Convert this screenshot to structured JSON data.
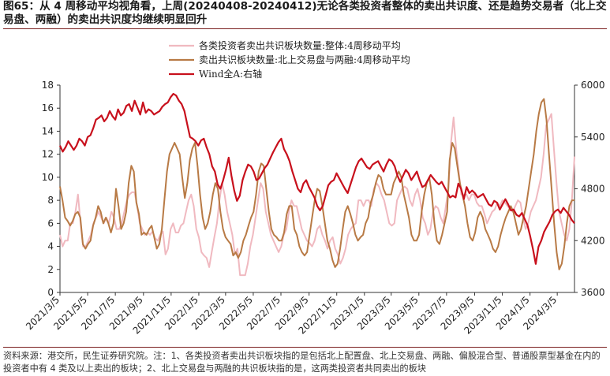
{
  "title": "图65：从 4 周移动平均视角看，上周(20240408-20240412)无论各类投资者整体的卖出共识度、还是趋势交易者（北上交易盘、两融）的卖出共识度均继续明显回升",
  "note": "资料来源：港交所，民生证券研究院。注：1、各类投资者卖出共识板块指的是包括北上配置盘、北上交易盘、两融、偏股混合型、普通股票型基金在内的投资者中有 4 类及以上卖出的板块；2、北上交易盘与两融的共识板块指的是，这两类投资者共同卖出的板块",
  "chart_data": {
    "type": "line",
    "x_ticks": [
      "2021/3/5",
      "2021/5/5",
      "2021/7/5",
      "2021/9/5",
      "2021/11/5",
      "2022/1/5",
      "2022/3/5",
      "2022/5/5",
      "2022/7/5",
      "2022/9/5",
      "2022/11/5",
      "2023/1/5",
      "2023/3/5",
      "2023/5/5",
      "2023/7/5",
      "2023/9/5",
      "2023/11/5",
      "2024/1/5",
      "2024/3/5"
    ],
    "x_range": [
      "2021/3/5",
      "2024/4/12"
    ],
    "y_left": {
      "min": 0,
      "max": 18,
      "ticks": [
        0,
        2,
        4,
        6,
        8,
        10,
        12,
        14,
        16,
        18
      ]
    },
    "y_right": {
      "min": 3600,
      "max": 6000,
      "ticks": [
        3600,
        4200,
        4800,
        5400,
        6000
      ]
    },
    "grid": false,
    "legend_position": "top-left",
    "series": [
      {
        "name": "各类投资者卖出共识板块数量:整体:4周移动平均",
        "color": "#f0b9c0",
        "axis": "left",
        "values": [
          5.0,
          4.0,
          4.5,
          4.5,
          6.0,
          6.0,
          7.0,
          8.5,
          6.0,
          4.0,
          4.0,
          4.5,
          5.0,
          6.0,
          6.5,
          7.0,
          6.5,
          6.0,
          6.5,
          6.0,
          7.0,
          6.5,
          5.5,
          5.5,
          6.0,
          7.0,
          8.0,
          8.5,
          8.7,
          8.7,
          7.5,
          6.0,
          5.5,
          5.0,
          5.2,
          5.0,
          5.3,
          4.7,
          4.5,
          5.0,
          5.3,
          3.3,
          3.8,
          5.5,
          6.0,
          5.2,
          5.2,
          5.8,
          6.0,
          7.0,
          8.0,
          8.5,
          7.5,
          5.5,
          4.8,
          3.5,
          3.2,
          3.0,
          2.2,
          3.5,
          4.8,
          6.0,
          8.0,
          9.5,
          8.5,
          7.0,
          6.0,
          5.0,
          3.3,
          3.8,
          1.5,
          1.5,
          1.5,
          2.5,
          4.0,
          5.0,
          6.5,
          8.0,
          9.5,
          9.0,
          7.0,
          6.0,
          5.0,
          4.5,
          4.0,
          3.5,
          4.0,
          5.0,
          5.5,
          7.0,
          8.0,
          7.5,
          7.5,
          6.5,
          5.5,
          5.0,
          4.5,
          4.3,
          4.0,
          4.5,
          5.5,
          5.8,
          5.0,
          4.5,
          3.8,
          4.5,
          4.8,
          3.8,
          3.3,
          2.5,
          3.0,
          3.8,
          5.0,
          5.5,
          5.8,
          6.0,
          8.0,
          8.0,
          7.5,
          8.0,
          8.0,
          7.5,
          9.0,
          9.5,
          9.2,
          8.5,
          8.0,
          7.0,
          6.0,
          5.8,
          6.0,
          8.0,
          8.5,
          9.0,
          9.2,
          9.0,
          8.0,
          7.5,
          8.5,
          9.0,
          8.0,
          6.5,
          6.0,
          5.0,
          5.5,
          7.0,
          7.5,
          7.3,
          6.5,
          6.0,
          7.5,
          9.0,
          13.0,
          15.2,
          12.5,
          10.5,
          8.5,
          8.5,
          8.5,
          8.0,
          8.5,
          8.5,
          7.8,
          7.5,
          7.5,
          6.8,
          6.0,
          6.5,
          7.0,
          7.2,
          7.8,
          7.5,
          8.0,
          7.8,
          7.5,
          7.2,
          7.0,
          7.5,
          8.0,
          7.8,
          6.5,
          5.5,
          6.0,
          7.0,
          7.5,
          8.0,
          9.0,
          10.0,
          12.0,
          14.5,
          15.0,
          15.5,
          12.5,
          9.5,
          7.0,
          6.0,
          5.0,
          4.5,
          5.5,
          8.0,
          11.8
        ]
      },
      {
        "name": "卖出共识板块数量:北上交易盘与两融:4周移动平均",
        "color": "#b87a45",
        "axis": "left",
        "values": [
          9.2,
          8.0,
          6.5,
          6.2,
          5.8,
          6.2,
          6.8,
          7.0,
          6.5,
          4.2,
          3.8,
          4.2,
          4.5,
          5.8,
          6.5,
          7.5,
          7.0,
          6.0,
          6.5,
          6.0,
          5.2,
          6.0,
          9.0,
          7.5,
          5.5,
          6.0,
          7.0,
          9.5,
          11.0,
          10.5,
          7.8,
          6.8,
          5.0,
          5.2,
          5.0,
          5.5,
          5.8,
          4.8,
          3.8,
          4.2,
          5.5,
          8.0,
          10.5,
          12.0,
          12.5,
          13.0,
          12.5,
          12.0,
          10.0,
          8.2,
          9.5,
          11.5,
          12.5,
          13.0,
          11.0,
          8.5,
          6.5,
          5.5,
          6.0,
          7.0,
          8.5,
          9.5,
          9.0,
          7.0,
          5.5,
          4.8,
          4.5,
          4.2,
          3.2,
          3.5,
          3.0,
          3.5,
          4.5,
          5.0,
          5.8,
          6.5,
          7.0,
          8.5,
          10.5,
          11.2,
          11.0,
          9.0,
          7.0,
          5.5,
          5.0,
          4.8,
          4.5,
          4.5,
          5.2,
          6.8,
          7.5,
          7.5,
          5.5,
          5.0,
          4.0,
          3.5,
          3.2,
          3.5,
          5.0,
          6.5,
          8.0,
          9.0,
          8.8,
          7.5,
          6.0,
          4.5,
          3.8,
          2.8,
          2.2,
          2.5,
          3.8,
          5.5,
          7.0,
          7.5,
          6.8,
          6.0,
          5.0,
          4.5,
          4.8,
          5.0,
          6.0,
          6.5,
          7.8,
          8.5,
          9.5,
          10.2,
          10.0,
          9.0,
          8.5,
          8.5,
          8.5,
          9.5,
          10.0,
          10.5,
          10.0,
          8.5,
          7.5,
          6.5,
          5.0,
          4.5,
          4.5,
          5.0,
          7.0,
          8.5,
          9.5,
          10.0,
          8.5,
          6.0,
          4.5,
          4.2,
          5.0,
          6.0,
          7.0,
          11.5,
          13.0,
          12.5,
          11.0,
          9.5,
          8.5,
          7.5,
          6.0,
          4.8,
          4.5,
          5.2,
          6.5,
          7.0,
          6.5,
          5.5,
          5.0,
          4.5,
          3.8,
          3.5,
          4.0,
          5.0,
          5.8,
          6.5,
          7.0,
          7.5,
          7.0,
          6.0,
          5.0,
          5.5,
          6.5,
          7.5,
          9.0,
          10.5,
          12.0,
          14.0,
          15.5,
          16.5,
          16.8,
          15.0,
          12.0,
          9.0,
          6.0,
          3.5,
          2.0,
          2.5,
          4.0,
          6.0,
          7.5,
          8.0,
          8.0
        ]
      },
      {
        "name": "Wind全A:右轴",
        "color": "#c8101c",
        "axis": "right",
        "values": [
          5300,
          5230,
          5280,
          5350,
          5300,
          5250,
          5300,
          5380,
          5350,
          5300,
          5400,
          5420,
          5500,
          5600,
          5620,
          5650,
          5580,
          5620,
          5700,
          5640,
          5600,
          5720,
          5650,
          5680,
          5760,
          5780,
          5700,
          5820,
          5740,
          5660,
          5800,
          5680,
          5720,
          5700,
          5660,
          5680,
          5700,
          5750,
          5780,
          5800,
          5860,
          5900,
          5880,
          5820,
          5780,
          5700,
          5550,
          5400,
          5380,
          5350,
          5300,
          5360,
          5380,
          5280,
          5200,
          5060,
          5000,
          4850,
          4800,
          4900,
          5020,
          5160,
          4950,
          4780,
          4660,
          4720,
          4900,
          5000,
          5080,
          5060,
          5000,
          4900,
          4920,
          4980,
          5040,
          5080,
          5150,
          5220,
          5280,
          5340,
          5380,
          5260,
          5200,
          5120,
          5000,
          4900,
          4800,
          4760,
          4860,
          4900,
          4820,
          4760,
          4700,
          4600,
          4550,
          4600,
          4720,
          4840,
          4880,
          4900,
          4980,
          4920,
          4860,
          4800,
          4750,
          4850,
          4950,
          5050,
          5120,
          5150,
          5100,
          5050,
          5030,
          5080,
          5100,
          5120,
          5060,
          5000,
          5080,
          5140,
          5120,
          5060,
          4950,
          4880,
          4950,
          5020,
          4980,
          4900,
          4950,
          5000,
          4900,
          4820,
          4840,
          4900,
          4960,
          4920,
          4880,
          4850,
          4880,
          4820,
          4760,
          4700,
          4720,
          4700,
          4860,
          4800,
          4680,
          4820,
          4750,
          4780,
          4750,
          4700,
          4720,
          4740,
          4680,
          4620,
          4600,
          4660,
          4640,
          4560,
          4620,
          4680,
          4620,
          4550,
          4560,
          4500,
          4480,
          4520,
          4450,
          4380,
          4250,
          4100,
          3930,
          4130,
          4200,
          4300,
          4360,
          4420,
          4500,
          4540,
          4560,
          4520,
          4580,
          4540,
          4500,
          4440,
          4400
        ]
      }
    ]
  }
}
